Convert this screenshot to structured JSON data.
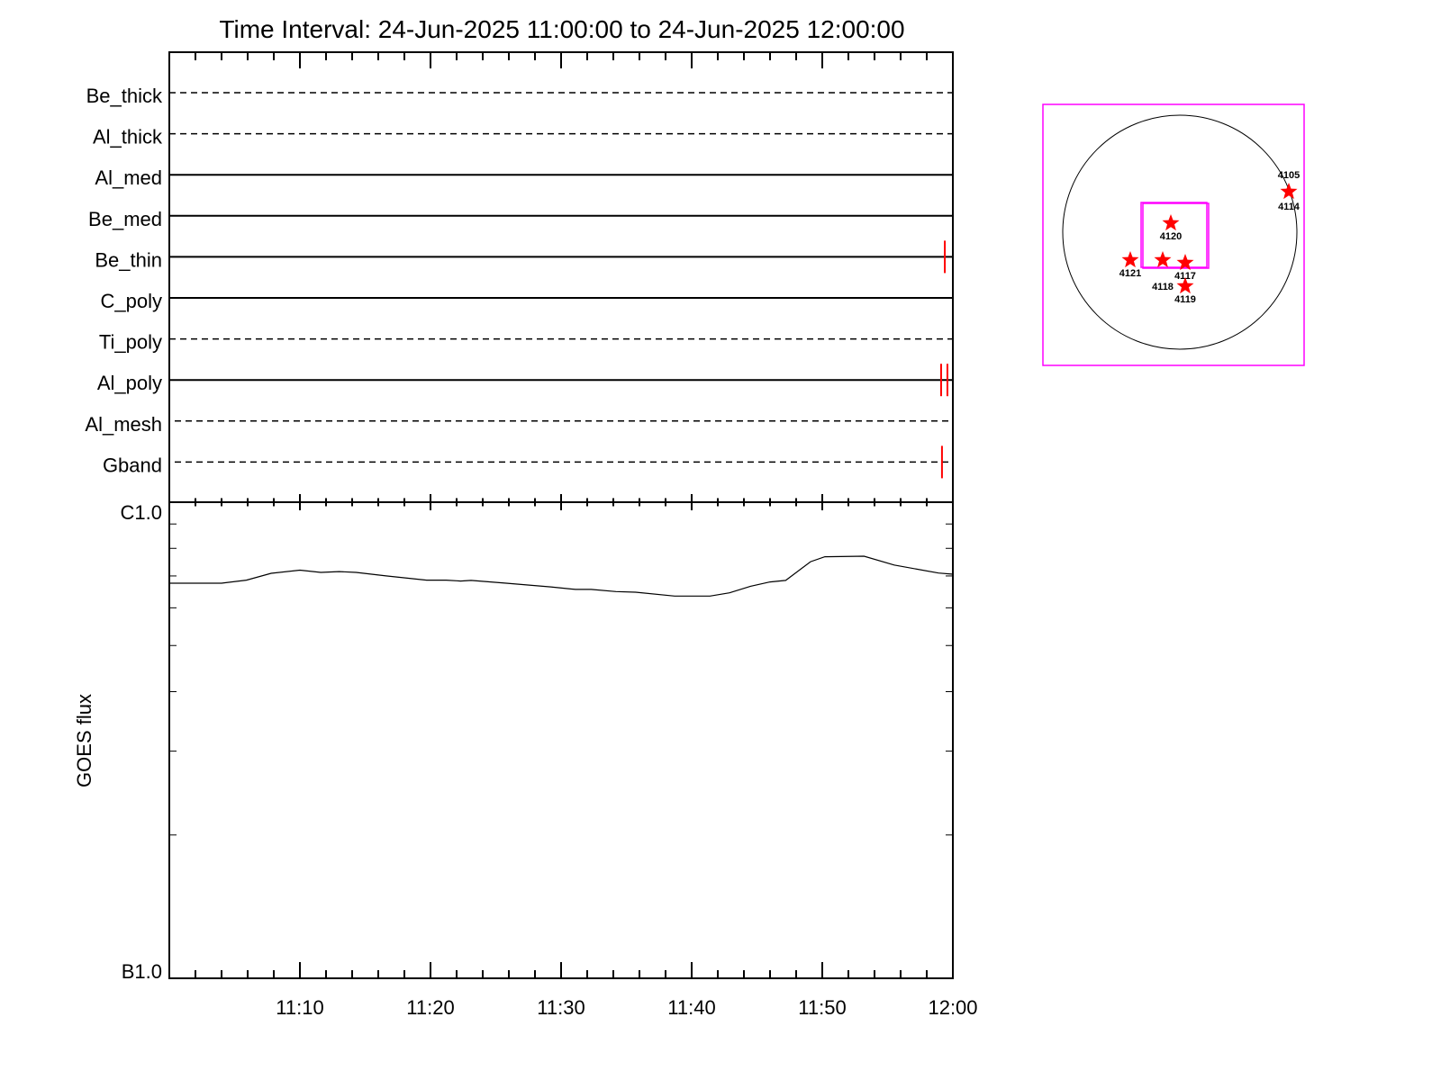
{
  "chart_data": [
    {
      "type": "line",
      "title": "Time Interval: 24-Jun-2025 11:00:00 to 24-Jun-2025 12:00:00",
      "panel": "detector strips",
      "rows": [
        {
          "name": "Be_thick",
          "style": "dashed"
        },
        {
          "name": "Al_thick",
          "style": "dashed"
        },
        {
          "name": "Al_med",
          "style": "solid"
        },
        {
          "name": "Be_med",
          "style": "solid"
        },
        {
          "name": "Be_thin",
          "style": "solid"
        },
        {
          "name": "C_poly",
          "style": "solid"
        },
        {
          "name": "Ti_poly",
          "style": "dashed"
        },
        {
          "name": "Al_poly",
          "style": "solid"
        },
        {
          "name": "Al_mesh",
          "style": "dashed"
        },
        {
          "name": "Gband",
          "style": "dashed"
        }
      ],
      "events": [
        {
          "row": "Be_thin",
          "time": "11:59:23"
        },
        {
          "row": "Al_poly",
          "time": "11:59:06"
        },
        {
          "row": "Al_poly",
          "time": "11:59:35"
        },
        {
          "row": "Gband",
          "time": "11:59:10"
        }
      ],
      "event_color": "#ff0000"
    },
    {
      "type": "line",
      "ylabel": "GOES flux",
      "yscale": "log",
      "ylim": [
        1e-07,
        1e-06
      ],
      "ytick_labels": [
        "B1.0",
        "C1.0"
      ],
      "xlim": [
        "11:00:00",
        "12:00:00"
      ],
      "xtick_labels": [
        "11:10",
        "11:20",
        "11:30",
        "11:40",
        "11:50",
        "12:00"
      ],
      "x": [
        "11:00:00",
        "11:04:00",
        "11:05:54",
        "11:07:48",
        "11:10:00",
        "11:11:36",
        "11:13:00",
        "11:14:18",
        "11:16:36",
        "11:19:42",
        "11:21:12",
        "11:22:18",
        "11:23:06",
        "11:25:48",
        "11:29:12",
        "11:31:06",
        "11:32:18",
        "11:34:12",
        "11:35:42",
        "11:38:42",
        "11:41:24",
        "11:42:54",
        "11:44:30",
        "11:46:00",
        "11:47:12",
        "11:49:06",
        "11:50:12",
        "11:53:12",
        "11:55:30",
        "11:58:54",
        "12:00:00"
      ],
      "values": [
        6.76e-07,
        6.76e-07,
        6.86e-07,
        7.09e-07,
        7.2e-07,
        7.12e-07,
        7.15e-07,
        7.12e-07,
        7e-07,
        6.86e-07,
        6.86e-07,
        6.83e-07,
        6.85e-07,
        6.76e-07,
        6.64e-07,
        6.56e-07,
        6.56e-07,
        6.49e-07,
        6.47e-07,
        6.35e-07,
        6.35e-07,
        6.45e-07,
        6.66e-07,
        6.8e-07,
        6.85e-07,
        7.5e-07,
        7.68e-07,
        7.7e-07,
        7.38e-07,
        7.1e-07,
        7.06e-07
      ],
      "line_color": "#000000"
    },
    {
      "type": "scatter",
      "panel": "solar disk map",
      "frame_color": "#ff00ff",
      "marker_color": "#ff0000",
      "marker": "star",
      "regions": [
        "4120",
        "4121",
        "4118",
        "4117",
        "4119",
        "4105",
        "4114"
      ]
    }
  ]
}
